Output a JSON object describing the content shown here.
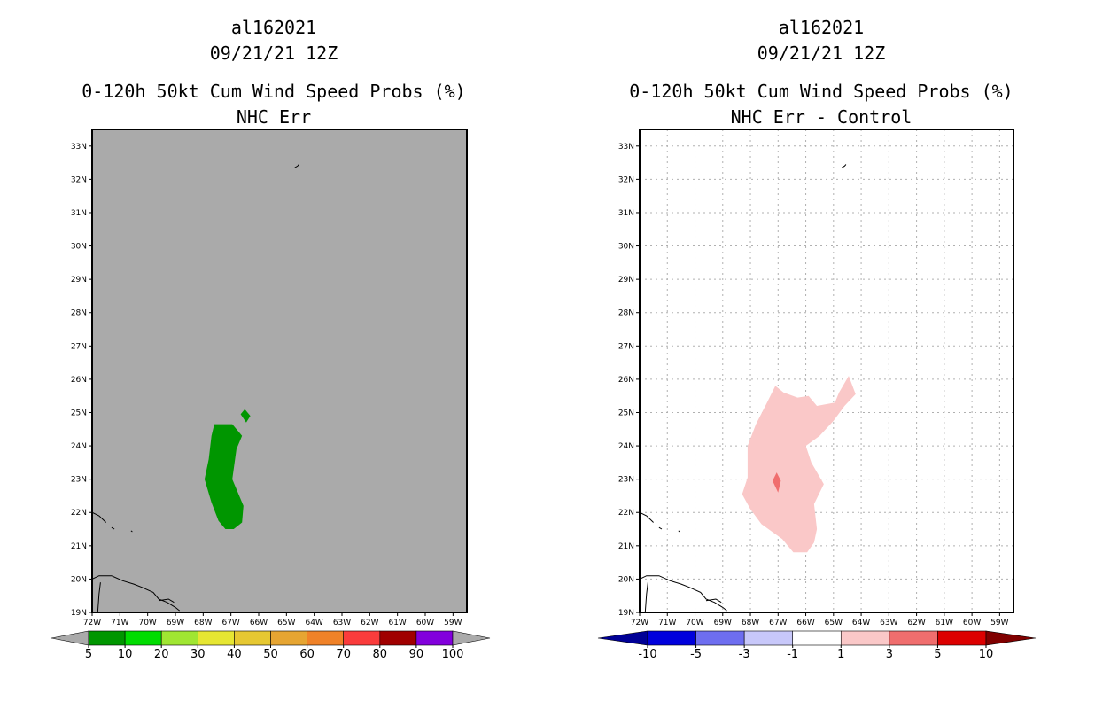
{
  "panels": [
    {
      "title_lines": [
        "al162021",
        "09/21/21 12Z",
        "0-120h 50kt Cum Wind Speed Probs (%)",
        "NHC Err"
      ],
      "background_color": "#aaaaaa",
      "chart_data": {
        "type": "heatmap",
        "title": "0-120h 50kt Cum Wind Speed Probs (%)",
        "subtitle": "NHC Err",
        "storm_id": "al162021",
        "datetime": "09/21/21 12Z",
        "xlim": [
          -72,
          -58.5
        ],
        "ylim": [
          19,
          33.5
        ],
        "x_ticks": [
          -72,
          -71,
          -70,
          -69,
          -68,
          -67,
          -66,
          -65,
          -64,
          -63,
          -62,
          -61,
          -60,
          -59
        ],
        "x_tick_labels": [
          "72W",
          "71W",
          "70W",
          "69W",
          "68W",
          "67W",
          "66W",
          "65W",
          "64W",
          "63W",
          "62W",
          "61W",
          "60W",
          "59W"
        ],
        "y_ticks": [
          19,
          20,
          21,
          22,
          23,
          24,
          25,
          26,
          27,
          28,
          29,
          30,
          31,
          32,
          33
        ],
        "y_tick_labels": [
          "19N",
          "20N",
          "21N",
          "22N",
          "23N",
          "24N",
          "25N",
          "26N",
          "27N",
          "28N",
          "29N",
          "30N",
          "31N",
          "32N",
          "33N"
        ],
        "grid": false,
        "colorbar": {
          "labels": [
            "5",
            "10",
            "20",
            "30",
            "40",
            "50",
            "60",
            "70",
            "80",
            "90",
            "100"
          ],
          "colors": [
            "#009600",
            "#00dc00",
            "#a0e632",
            "#e6e632",
            "#e6c832",
            "#e6a532",
            "#f08228",
            "#fa3c3c",
            "#a00000",
            "#8200dc"
          ],
          "under_color": "#aaaaaa",
          "over_color": "#aaaaaa"
        },
        "contours": [
          {
            "level": "5-10",
            "color": "#009600",
            "polygon": [
              [
                -67.6,
                24.65
              ],
              [
                -66.95,
                24.65
              ],
              [
                -66.6,
                24.3
              ],
              [
                -66.8,
                23.9
              ],
              [
                -66.95,
                23.0
              ],
              [
                -66.55,
                22.2
              ],
              [
                -66.6,
                21.7
              ],
              [
                -66.9,
                21.5
              ],
              [
                -67.2,
                21.5
              ],
              [
                -67.45,
                21.75
              ],
              [
                -67.7,
                22.3
              ],
              [
                -67.95,
                23.0
              ],
              [
                -67.8,
                23.6
              ],
              [
                -67.7,
                24.3
              ]
            ]
          },
          {
            "level": "5-10",
            "color": "#009600",
            "polygon": [
              [
                -66.5,
                25.1
              ],
              [
                -66.3,
                24.9
              ],
              [
                -66.45,
                24.7
              ],
              [
                -66.65,
                24.95
              ]
            ]
          }
        ]
      }
    },
    {
      "title_lines": [
        "al162021",
        "09/21/21 12Z",
        "0-120h 50kt Cum Wind Speed Probs (%)",
        "NHC Err - Control"
      ],
      "background_color": "#ffffff",
      "chart_data": {
        "type": "heatmap",
        "title": "0-120h 50kt Cum Wind Speed Probs (%)",
        "subtitle": "NHC Err - Control",
        "storm_id": "al162021",
        "datetime": "09/21/21 12Z",
        "xlim": [
          -72,
          -58.5
        ],
        "ylim": [
          19,
          33.5
        ],
        "x_ticks": [
          -72,
          -71,
          -70,
          -69,
          -68,
          -67,
          -66,
          -65,
          -64,
          -63,
          -62,
          -61,
          -60,
          -59
        ],
        "x_tick_labels": [
          "72W",
          "71W",
          "70W",
          "69W",
          "68W",
          "67W",
          "66W",
          "65W",
          "64W",
          "63W",
          "62W",
          "61W",
          "60W",
          "59W"
        ],
        "y_ticks": [
          19,
          20,
          21,
          22,
          23,
          24,
          25,
          26,
          27,
          28,
          29,
          30,
          31,
          32,
          33
        ],
        "y_tick_labels": [
          "19N",
          "20N",
          "21N",
          "22N",
          "23N",
          "24N",
          "25N",
          "26N",
          "27N",
          "28N",
          "29N",
          "30N",
          "31N",
          "32N",
          "33N"
        ],
        "grid": true,
        "colorbar": {
          "labels": [
            "-10",
            "-5",
            "-3",
            "-1",
            "1",
            "3",
            "5",
            "10"
          ],
          "colors": [
            "#0000dc",
            "#6e6ef0",
            "#c8c8fa",
            "#ffffff",
            "#fac8c8",
            "#f06e6e",
            "#dc0000"
          ],
          "under_color": "#000096",
          "over_color": "#800000"
        },
        "contours": [
          {
            "level": "1-3",
            "color": "#fac8c8",
            "polygon": [
              [
                -67.1,
                25.8
              ],
              [
                -66.8,
                25.6
              ],
              [
                -66.3,
                25.45
              ],
              [
                -65.9,
                25.5
              ],
              [
                -65.6,
                25.2
              ],
              [
                -64.95,
                25.3
              ],
              [
                -64.8,
                25.6
              ],
              [
                -64.45,
                26.1
              ],
              [
                -64.2,
                25.55
              ],
              [
                -64.6,
                25.2
              ],
              [
                -65.0,
                24.75
              ],
              [
                -65.5,
                24.3
              ],
              [
                -66.0,
                24.0
              ],
              [
                -65.8,
                23.5
              ],
              [
                -65.35,
                22.85
              ],
              [
                -65.7,
                22.25
              ],
              [
                -65.6,
                21.5
              ],
              [
                -65.7,
                21.1
              ],
              [
                -65.95,
                20.8
              ],
              [
                -66.45,
                20.8
              ],
              [
                -66.85,
                21.2
              ],
              [
                -67.6,
                21.65
              ],
              [
                -68.0,
                22.1
              ],
              [
                -68.3,
                22.55
              ],
              [
                -68.1,
                23.05
              ],
              [
                -68.1,
                24.0
              ],
              [
                -67.8,
                24.65
              ],
              [
                -67.4,
                25.3
              ]
            ]
          },
          {
            "level": "3-5",
            "color": "#f06e6e",
            "polygon": [
              [
                -67.05,
                23.2
              ],
              [
                -66.9,
                22.95
              ],
              [
                -67.0,
                22.6
              ],
              [
                -67.2,
                22.95
              ]
            ]
          }
        ]
      }
    }
  ],
  "map": {
    "coast_color": "#000000",
    "coastlines": [
      [
        [
          -72.0,
          22.0
        ],
        [
          -71.75,
          21.9
        ],
        [
          -71.5,
          21.7
        ]
      ],
      [
        [
          -71.3,
          21.55
        ],
        [
          -71.2,
          21.5
        ]
      ],
      [
        [
          -70.6,
          21.45
        ],
        [
          -70.55,
          21.42
        ]
      ],
      [
        [
          -72.0,
          20.0
        ],
        [
          -71.75,
          20.1
        ],
        [
          -71.3,
          20.1
        ],
        [
          -70.9,
          19.95
        ],
        [
          -70.5,
          19.85
        ],
        [
          -70.2,
          19.75
        ],
        [
          -69.8,
          19.6
        ],
        [
          -69.6,
          19.4
        ],
        [
          -69.3,
          19.3
        ],
        [
          -69.0,
          19.15
        ],
        [
          -68.85,
          19.05
        ]
      ],
      [
        [
          -69.6,
          19.35
        ],
        [
          -69.25,
          19.4
        ],
        [
          -69.05,
          19.3
        ]
      ],
      [
        [
          -71.7,
          19.9
        ],
        [
          -71.75,
          19.55
        ],
        [
          -71.8,
          19.0
        ]
      ],
      [
        [
          -64.7,
          32.35
        ],
        [
          -64.6,
          32.4
        ],
        [
          -64.55,
          32.45
        ]
      ]
    ]
  }
}
